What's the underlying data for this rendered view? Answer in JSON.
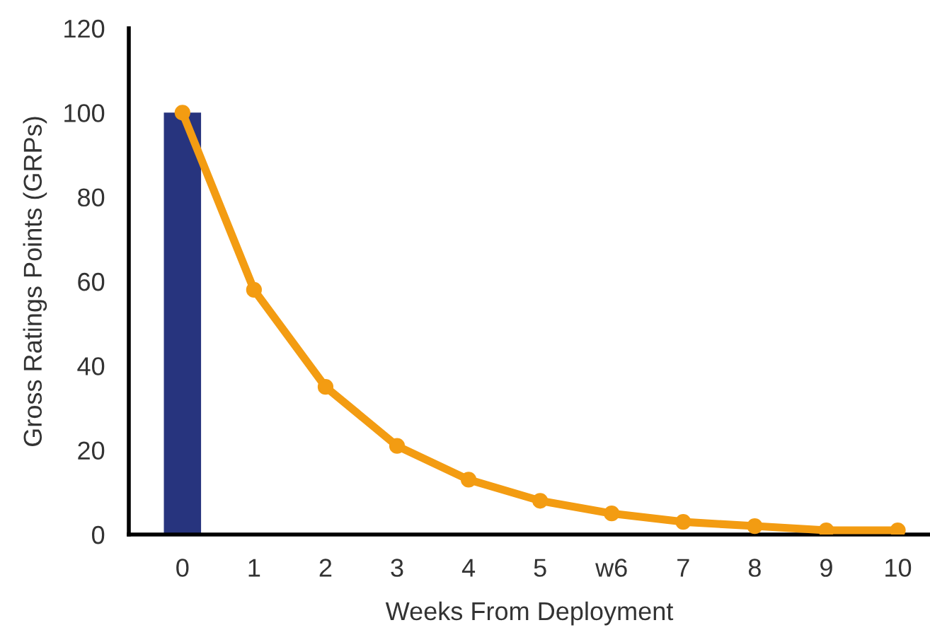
{
  "chart_data": {
    "type": "bar",
    "xlabel": "Weeks From Deployment",
    "ylabel": "Gross Ratings Points (GRPs)",
    "categories": [
      "0",
      "1",
      "2",
      "3",
      "4",
      "5",
      "w6",
      "7",
      "8",
      "9",
      "10"
    ],
    "series": [
      {
        "color": "#27347e",
        "values": [
          100,
          null,
          null,
          null,
          null,
          null,
          null,
          null,
          null,
          null,
          null
        ]
      },
      {
        "type": "line",
        "color": "#f39c12",
        "marker": "circle",
        "values": [
          100,
          58,
          35,
          21,
          13,
          8,
          5,
          3,
          2,
          1,
          1
        ]
      }
    ],
    "ylim": [
      0,
      120
    ],
    "yticks": [
      0,
      20,
      40,
      60,
      80,
      100,
      120
    ],
    "grid": false,
    "legend": false
  }
}
